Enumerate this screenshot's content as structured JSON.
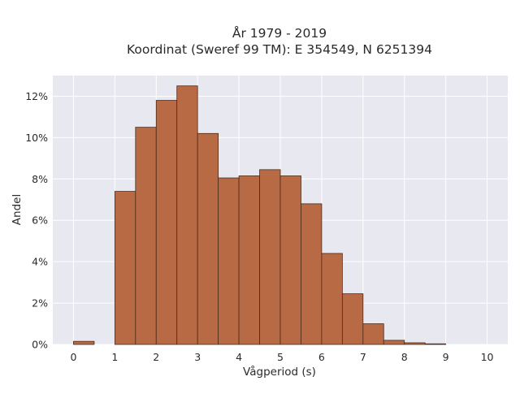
{
  "chart_data": {
    "type": "bar",
    "title": [
      "År 1979 - 2019",
      "Koordinat (Sweref 99 TM): E 354549, N 6251394"
    ],
    "xlabel": "Vågperiod (s)",
    "ylabel": "Andel",
    "xlim": [
      -0.5,
      10.5
    ],
    "ylim": [
      0,
      13
    ],
    "x_ticks": [
      0,
      1,
      2,
      3,
      4,
      5,
      6,
      7,
      8,
      9,
      10
    ],
    "y_ticks": [
      0,
      2,
      4,
      6,
      8,
      10,
      12
    ],
    "y_tick_labels": [
      "0%",
      "2%",
      "4%",
      "6%",
      "8%",
      "10%",
      "12%"
    ],
    "bin_width": 0.5,
    "bins": [
      {
        "x0": 0.0,
        "value": 0.15
      },
      {
        "x0": 0.5,
        "value": 0.0
      },
      {
        "x0": 1.0,
        "value": 7.4
      },
      {
        "x0": 1.5,
        "value": 10.5
      },
      {
        "x0": 2.0,
        "value": 11.8
      },
      {
        "x0": 2.5,
        "value": 12.5
      },
      {
        "x0": 3.0,
        "value": 10.2
      },
      {
        "x0": 3.5,
        "value": 8.05
      },
      {
        "x0": 4.0,
        "value": 8.15
      },
      {
        "x0": 4.5,
        "value": 8.45
      },
      {
        "x0": 5.0,
        "value": 8.15
      },
      {
        "x0": 5.5,
        "value": 6.8
      },
      {
        "x0": 6.0,
        "value": 4.4
      },
      {
        "x0": 6.5,
        "value": 2.45
      },
      {
        "x0": 7.0,
        "value": 1.0
      },
      {
        "x0": 7.5,
        "value": 0.2
      },
      {
        "x0": 8.0,
        "value": 0.08
      },
      {
        "x0": 8.5,
        "value": 0.03
      }
    ],
    "grid": true,
    "colors": {
      "bar": "#b86a45",
      "bar_edge": "#4a2a18",
      "plot_background": "#e8e8f1",
      "grid": "#ffffff"
    }
  }
}
